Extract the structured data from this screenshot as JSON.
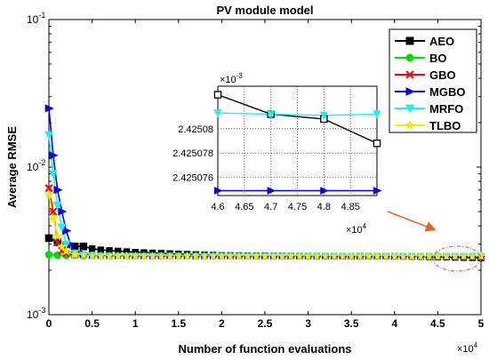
{
  "chart_data": [
    {
      "type": "line",
      "title": "PV module model",
      "xlabel": "Number of function evaluations",
      "ylabel": "Average RMSE",
      "x_scale_label": "×10",
      "x_scale_exp": "4",
      "y_scale": "log",
      "xlim": [
        0,
        5
      ],
      "ylim": [
        0.001,
        0.1
      ],
      "x_ticks": [
        "0",
        "0.5",
        "1",
        "1.5",
        "2",
        "2.5",
        "3",
        "3.5",
        "4",
        "4.5",
        "5"
      ],
      "y_ticks": [
        {
          "base": "10",
          "exp": "-1"
        },
        {
          "base": "10",
          "exp": "-2"
        },
        {
          "base": "10",
          "exp": "-3"
        }
      ],
      "grid": false,
      "legend_position": "top-right",
      "series": [
        {
          "name": "AEO",
          "color": "#000000",
          "marker": "square",
          "x": [
            0,
            0.1,
            0.2,
            0.3,
            0.4,
            0.5,
            0.6,
            0.8,
            1.0,
            1.5,
            2.0,
            3.0,
            4.0,
            5.0
          ],
          "y": [
            0.0033,
            0.0031,
            0.003,
            0.0029,
            0.0029,
            0.0028,
            0.00275,
            0.0027,
            0.00265,
            0.00258,
            0.00252,
            0.002495,
            0.00249,
            0.002425
          ]
        },
        {
          "name": "BO",
          "color": "#00dd00",
          "marker": "circle",
          "x": [
            0,
            0.1,
            0.2,
            0.4,
            1.0,
            2.0,
            3.0,
            4.0,
            5.0
          ],
          "y": [
            0.00255,
            0.00253,
            0.00252,
            0.00251,
            0.0025,
            0.002495,
            0.002492,
            0.00249,
            0.002488
          ]
        },
        {
          "name": "GBO",
          "color": "#ff0000",
          "marker": "x",
          "x": [
            0,
            0.05,
            0.1,
            0.15,
            0.2,
            0.3,
            0.5,
            1.0,
            2.0,
            3.0,
            4.0,
            5.0
          ],
          "y": [
            0.0072,
            0.005,
            0.0031,
            0.0027,
            0.0026,
            0.00254,
            0.0025,
            0.00249,
            0.002488,
            0.002486,
            0.002485,
            0.002485
          ]
        },
        {
          "name": "MGBO",
          "color": "#0000ee",
          "marker": "triangle-right",
          "x": [
            0,
            0.05,
            0.1,
            0.15,
            0.2,
            0.25,
            0.3,
            0.4,
            0.5,
            1.0,
            2.0,
            3.0,
            4.0,
            5.0
          ],
          "y": [
            0.025,
            0.012,
            0.007,
            0.005,
            0.0037,
            0.003,
            0.0027,
            0.00258,
            0.00252,
            0.002495,
            0.00249,
            0.002488,
            0.002487,
            0.002486
          ]
        },
        {
          "name": "MRFO",
          "color": "#22eeee",
          "marker": "triangle-down",
          "x": [
            0,
            0.05,
            0.1,
            0.15,
            0.2,
            0.3,
            0.4,
            0.5,
            1.0,
            2.0,
            3.0,
            4.0,
            5.0
          ],
          "y": [
            0.0165,
            0.009,
            0.0055,
            0.0039,
            0.003,
            0.0026,
            0.00252,
            0.0025,
            0.002495,
            0.002492,
            0.00249,
            0.002488,
            0.002487
          ]
        },
        {
          "name": "TLBO",
          "color": "#eeee00",
          "marker": "star",
          "x": [
            0,
            0.05,
            0.1,
            0.15,
            0.2,
            0.3,
            0.5,
            1.0,
            2.0,
            3.0,
            4.0,
            5.0
          ],
          "y": [
            0.0065,
            0.0045,
            0.0034,
            0.0029,
            0.0027,
            0.00256,
            0.0025,
            0.002495,
            0.002492,
            0.00249,
            0.002488,
            0.002487
          ]
        }
      ]
    },
    {
      "type": "line",
      "title": "",
      "xlim": [
        4.6,
        4.9
      ],
      "ylim": [
        2.4250745,
        2.4250835
      ],
      "x_scale_label": "×10",
      "x_scale_exp": "4",
      "y_scale_label": "×10",
      "y_scale_exp": "-3",
      "x_ticks": [
        "4.6",
        "4.65",
        "4.7",
        "4.75",
        "4.8",
        "4.85"
      ],
      "y_ticks": [
        "2.42508",
        "2.425078",
        "2.425076"
      ],
      "y_tick_values": [
        2.42508,
        2.425078,
        2.425076
      ],
      "grid": true,
      "series": [
        {
          "name": "AEO",
          "color": "#000000",
          "marker": "square",
          "x": [
            4.6,
            4.7,
            4.8,
            4.9
          ],
          "y": [
            2.4250828,
            2.4250812,
            2.4250808,
            2.4250788
          ]
        },
        {
          "name": "MRFO",
          "color": "#22eeee",
          "marker": "triangle-down",
          "x": [
            4.6,
            4.7,
            4.8,
            4.9
          ],
          "y": [
            2.4250813,
            2.4250812,
            2.4250811,
            2.4250812
          ]
        },
        {
          "name": "MGBO",
          "color": "#0000ee",
          "marker": "triangle-right",
          "x": [
            4.6,
            4.7,
            4.8,
            4.9
          ],
          "y": [
            2.4250749,
            2.4250749,
            2.4250749,
            2.4250749
          ]
        }
      ]
    }
  ]
}
